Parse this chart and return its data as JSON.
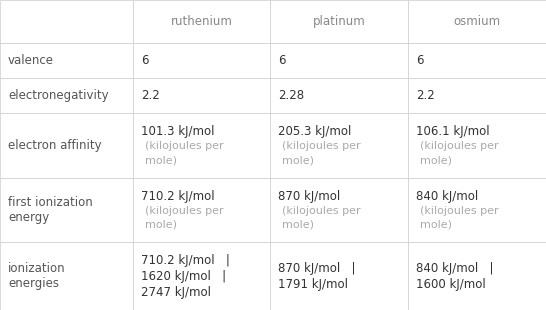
{
  "columns": [
    "",
    "ruthenium",
    "platinum",
    "osmium"
  ],
  "rows": [
    {
      "label": "valence",
      "values": [
        "6",
        "6",
        "6"
      ],
      "multi": [
        false,
        false,
        false
      ]
    },
    {
      "label": "electronegativity",
      "values": [
        "2.2",
        "2.28",
        "2.2"
      ],
      "multi": [
        false,
        false,
        false
      ]
    },
    {
      "label": "electron affinity",
      "values": [
        "101.3 kJ/mol",
        "205.3 kJ/mol",
        "106.1 kJ/mol"
      ],
      "sub": [
        "(kilojoules per\nmole)",
        "(kilojoules per\nmole)",
        "(kilojoules per\nmole)"
      ],
      "multi": [
        true,
        true,
        true
      ]
    },
    {
      "label": "first ionization\nenergy",
      "values": [
        "710.2 kJ/mol",
        "870 kJ/mol",
        "840 kJ/mol"
      ],
      "sub": [
        "(kilojoules per\nmole)",
        "(kilojoules per\nmole)",
        "(kilojoules per\nmole)"
      ],
      "multi": [
        true,
        true,
        true
      ]
    },
    {
      "label": "ionization\nenergies",
      "values": [
        "710.2 kJ/mol   |\n1620 kJ/mol   |\n2747 kJ/mol",
        "870 kJ/mol   |\n1791 kJ/mol",
        "840 kJ/mol   |\n1600 kJ/mol"
      ],
      "multi": [
        false,
        false,
        false
      ]
    }
  ],
  "background_color": "#ffffff",
  "border_color": "#cccccc",
  "header_text_color": "#888888",
  "label_text_color": "#555555",
  "value_main_color": "#333333",
  "value_sub_color": "#aaaaaa",
  "font_size_header": 8.5,
  "font_size_label": 8.5,
  "font_size_value": 8.5,
  "font_size_sub": 8.0
}
